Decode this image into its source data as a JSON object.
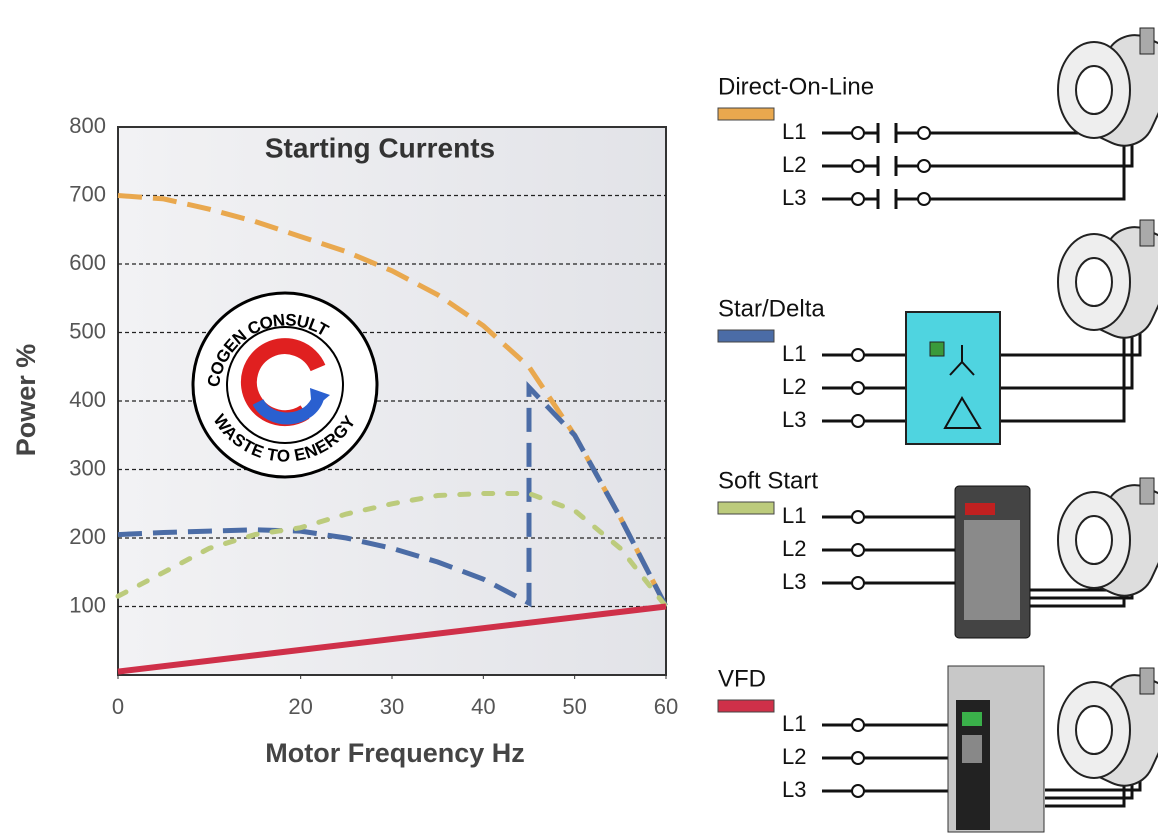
{
  "chart_data": {
    "type": "line",
    "title": "Starting Currents",
    "x_label": "Motor Frequency Hz",
    "y_label": "Power %",
    "xlim": [
      0,
      60
    ],
    "xticks": [
      0,
      20,
      30,
      40,
      50,
      60
    ],
    "ylim": [
      0,
      800
    ],
    "yticks": [
      100,
      200,
      300,
      400,
      500,
      600,
      700,
      800
    ],
    "grid": true,
    "series": [
      {
        "name": "Direct-On-Line",
        "color": "#e9a84e",
        "style": "dashed",
        "x": [
          0,
          5,
          10,
          15,
          20,
          25,
          30,
          35,
          40,
          45,
          50,
          55,
          60
        ],
        "values": [
          700,
          695,
          680,
          662,
          640,
          618,
          590,
          555,
          510,
          450,
          350,
          230,
          100
        ]
      },
      {
        "name": "Star/Delta",
        "color": "#4b6ca6",
        "style": "dashed",
        "x": [
          0,
          5,
          10,
          15,
          20,
          25,
          30,
          35,
          40,
          45,
          45,
          50,
          55,
          60
        ],
        "values": [
          205,
          208,
          210,
          212,
          210,
          200,
          185,
          165,
          140,
          105,
          420,
          350,
          230,
          100
        ]
      },
      {
        "name": "Soft Start",
        "color": "#bccb7c",
        "style": "dotted",
        "x": [
          0,
          5,
          10,
          15,
          20,
          25,
          30,
          35,
          40,
          45,
          50,
          55,
          60
        ],
        "values": [
          115,
          150,
          185,
          205,
          215,
          235,
          250,
          262,
          265,
          265,
          240,
          185,
          100
        ]
      },
      {
        "name": "VFD",
        "color": "#cf3049",
        "style": "solid",
        "x": [
          0,
          60
        ],
        "values": [
          5,
          100
        ]
      }
    ],
    "line_labels": [
      "L1",
      "L2",
      "L3"
    ],
    "annotations": [
      "COGEN CONSULT",
      "WASTE TO ENERGY"
    ]
  }
}
